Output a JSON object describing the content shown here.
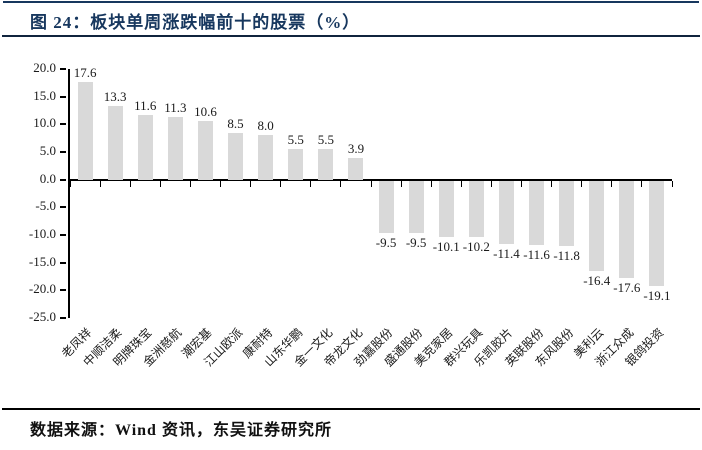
{
  "header": {
    "title": "图 24：板块单周涨跌幅前十的股票（%）"
  },
  "footer": {
    "source": "数据来源：Wind 资讯，东吴证券研究所"
  },
  "colors": {
    "accent_navy": "#17375e",
    "bar_fill": "#d9d9d9",
    "axis": "#000000",
    "text": "#1a1a1a"
  },
  "chart_data": {
    "type": "bar",
    "title": "板块单周涨跌幅前十的股票（%）",
    "xlabel": "",
    "ylabel": "",
    "categories": [
      "老凤祥",
      "中顺洁柔",
      "明牌珠宝",
      "金洲慈航",
      "潮宏基",
      "江山欧派",
      "康耐特",
      "山东华鹏",
      "金一文化",
      "帝龙文化",
      "劲嘉股份",
      "盛通股份",
      "美克家居",
      "群兴玩具",
      "乐凯胶片",
      "英联股份",
      "东风股份",
      "美利云",
      "浙江众成",
      "银鸽投资"
    ],
    "values": [
      17.6,
      13.3,
      11.6,
      11.3,
      10.6,
      8.5,
      8.0,
      5.5,
      5.5,
      3.9,
      -9.5,
      -9.5,
      -10.1,
      -10.2,
      -11.4,
      -11.6,
      -11.8,
      -16.4,
      -17.6,
      -19.1
    ],
    "data_labels": [
      "17.6",
      "13.3",
      "11.6",
      "11.3",
      "10.6",
      "8.5",
      "8.0",
      "5.5",
      "5.5",
      "3.9",
      "-9.5",
      "-9.5",
      "-10.1",
      "-10.2",
      "-11.4",
      "-11.6",
      "-11.8",
      "-16.4",
      "-17.6",
      "-19.1"
    ],
    "ylim": [
      -25.0,
      20.0
    ],
    "ytick_interval": 5.0,
    "ytick_labels": [
      "20.0",
      "15.0",
      "10.0",
      "5.0",
      "0.0",
      "-5.0",
      "-10.0",
      "-15.0",
      "-20.0",
      "-25.0"
    ],
    "grid": false,
    "legend": "none",
    "bar_color": "#d9d9d9",
    "label_position": "outside-end",
    "category_label_rotation_deg": 45
  }
}
